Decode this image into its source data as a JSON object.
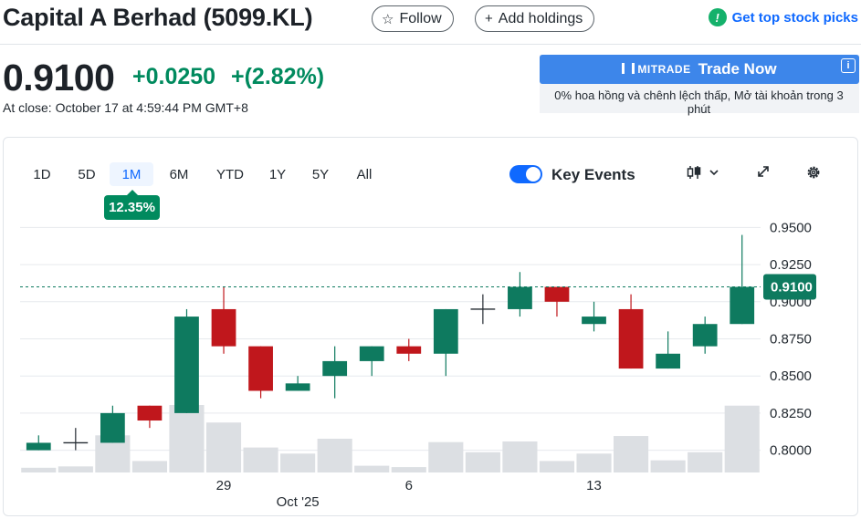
{
  "header": {
    "title": "Capital A Berhad (5099.KL)",
    "follow_label": "Follow",
    "follow_icon": "star-outline-icon",
    "add_holdings_label": "Add holdings",
    "add_icon": "plus-icon",
    "top_picks_label": "Get top stock picks",
    "top_picks_icon": "exclamation-badge-icon",
    "top_picks_glyph": "!"
  },
  "quote": {
    "price": "0.9100",
    "change": "+0.0250",
    "change_pct": "+(2.82%)",
    "close_time": "At close: October 17 at 4:59:44 PM GMT+8"
  },
  "ad": {
    "brand": "MITRADE",
    "cta": "Trade Now",
    "info_glyph": "i",
    "text": "0% hoa hồng và chênh lệch thấp, Mở tài khoản trong 3 phút"
  },
  "chart_controls": {
    "ranges": [
      "1D",
      "5D",
      "1M",
      "6M",
      "YTD",
      "1Y",
      "5Y",
      "All"
    ],
    "active_range": "1M",
    "range_change": "12.35%",
    "key_events_label": "Key Events",
    "key_events_on": true
  },
  "colors": {
    "up": "#0e7a5f",
    "down": "#c0171c",
    "volume": "#dcdfe3",
    "accent": "#0f69ff",
    "positive_text": "#008a5e"
  },
  "chart_data": {
    "type": "candlestick",
    "title": "Capital A Berhad (5099.KL) 1M",
    "ylim": [
      0.785,
      0.965
    ],
    "y_ticks": [
      "0.9500",
      "0.9250",
      "0.9000",
      "0.8750",
      "0.8500",
      "0.8250",
      "0.8000"
    ],
    "y_tick_values": [
      0.95,
      0.925,
      0.9,
      0.875,
      0.85,
      0.825,
      0.8
    ],
    "x_tick_labels": [
      {
        "label": "29",
        "index": 5
      },
      {
        "label": "6",
        "index": 10
      },
      {
        "label": "13",
        "index": 15
      }
    ],
    "x_sublabel": {
      "label": "Oct '25",
      "index": 7
    },
    "last_price_line": 0.91,
    "last_price_label": "0.9100",
    "candles": [
      {
        "o": 0.8,
        "h": 0.81,
        "l": 0.8,
        "c": 0.805
      },
      {
        "o": 0.805,
        "h": 0.815,
        "l": 0.8,
        "c": 0.805
      },
      {
        "o": 0.805,
        "h": 0.83,
        "l": 0.805,
        "c": 0.825
      },
      {
        "o": 0.83,
        "h": 0.83,
        "l": 0.815,
        "c": 0.82
      },
      {
        "o": 0.825,
        "h": 0.895,
        "l": 0.825,
        "c": 0.89
      },
      {
        "o": 0.895,
        "h": 0.91,
        "l": 0.865,
        "c": 0.87
      },
      {
        "o": 0.87,
        "h": 0.87,
        "l": 0.835,
        "c": 0.84
      },
      {
        "o": 0.84,
        "h": 0.85,
        "l": 0.84,
        "c": 0.845
      },
      {
        "o": 0.85,
        "h": 0.87,
        "l": 0.835,
        "c": 0.86
      },
      {
        "o": 0.86,
        "h": 0.87,
        "l": 0.85,
        "c": 0.87
      },
      {
        "o": 0.87,
        "h": 0.875,
        "l": 0.86,
        "c": 0.865
      },
      {
        "o": 0.865,
        "h": 0.895,
        "l": 0.85,
        "c": 0.895
      },
      {
        "o": 0.895,
        "h": 0.905,
        "l": 0.885,
        "c": 0.895
      },
      {
        "o": 0.895,
        "h": 0.92,
        "l": 0.89,
        "c": 0.91
      },
      {
        "o": 0.91,
        "h": 0.91,
        "l": 0.89,
        "c": 0.9
      },
      {
        "o": 0.885,
        "h": 0.9,
        "l": 0.88,
        "c": 0.89
      },
      {
        "o": 0.895,
        "h": 0.905,
        "l": 0.855,
        "c": 0.855
      },
      {
        "o": 0.855,
        "h": 0.88,
        "l": 0.855,
        "c": 0.865
      },
      {
        "o": 0.87,
        "h": 0.89,
        "l": 0.865,
        "c": 0.885
      },
      {
        "o": 0.885,
        "h": 0.945,
        "l": 0.885,
        "c": 0.91
      }
    ],
    "volume_scale_max": 1.0,
    "volumes": [
      0.07,
      0.09,
      0.55,
      0.17,
      1.0,
      0.74,
      0.37,
      0.28,
      0.5,
      0.1,
      0.08,
      0.45,
      0.3,
      0.46,
      0.17,
      0.28,
      0.54,
      0.18,
      0.3,
      0.99
    ]
  }
}
